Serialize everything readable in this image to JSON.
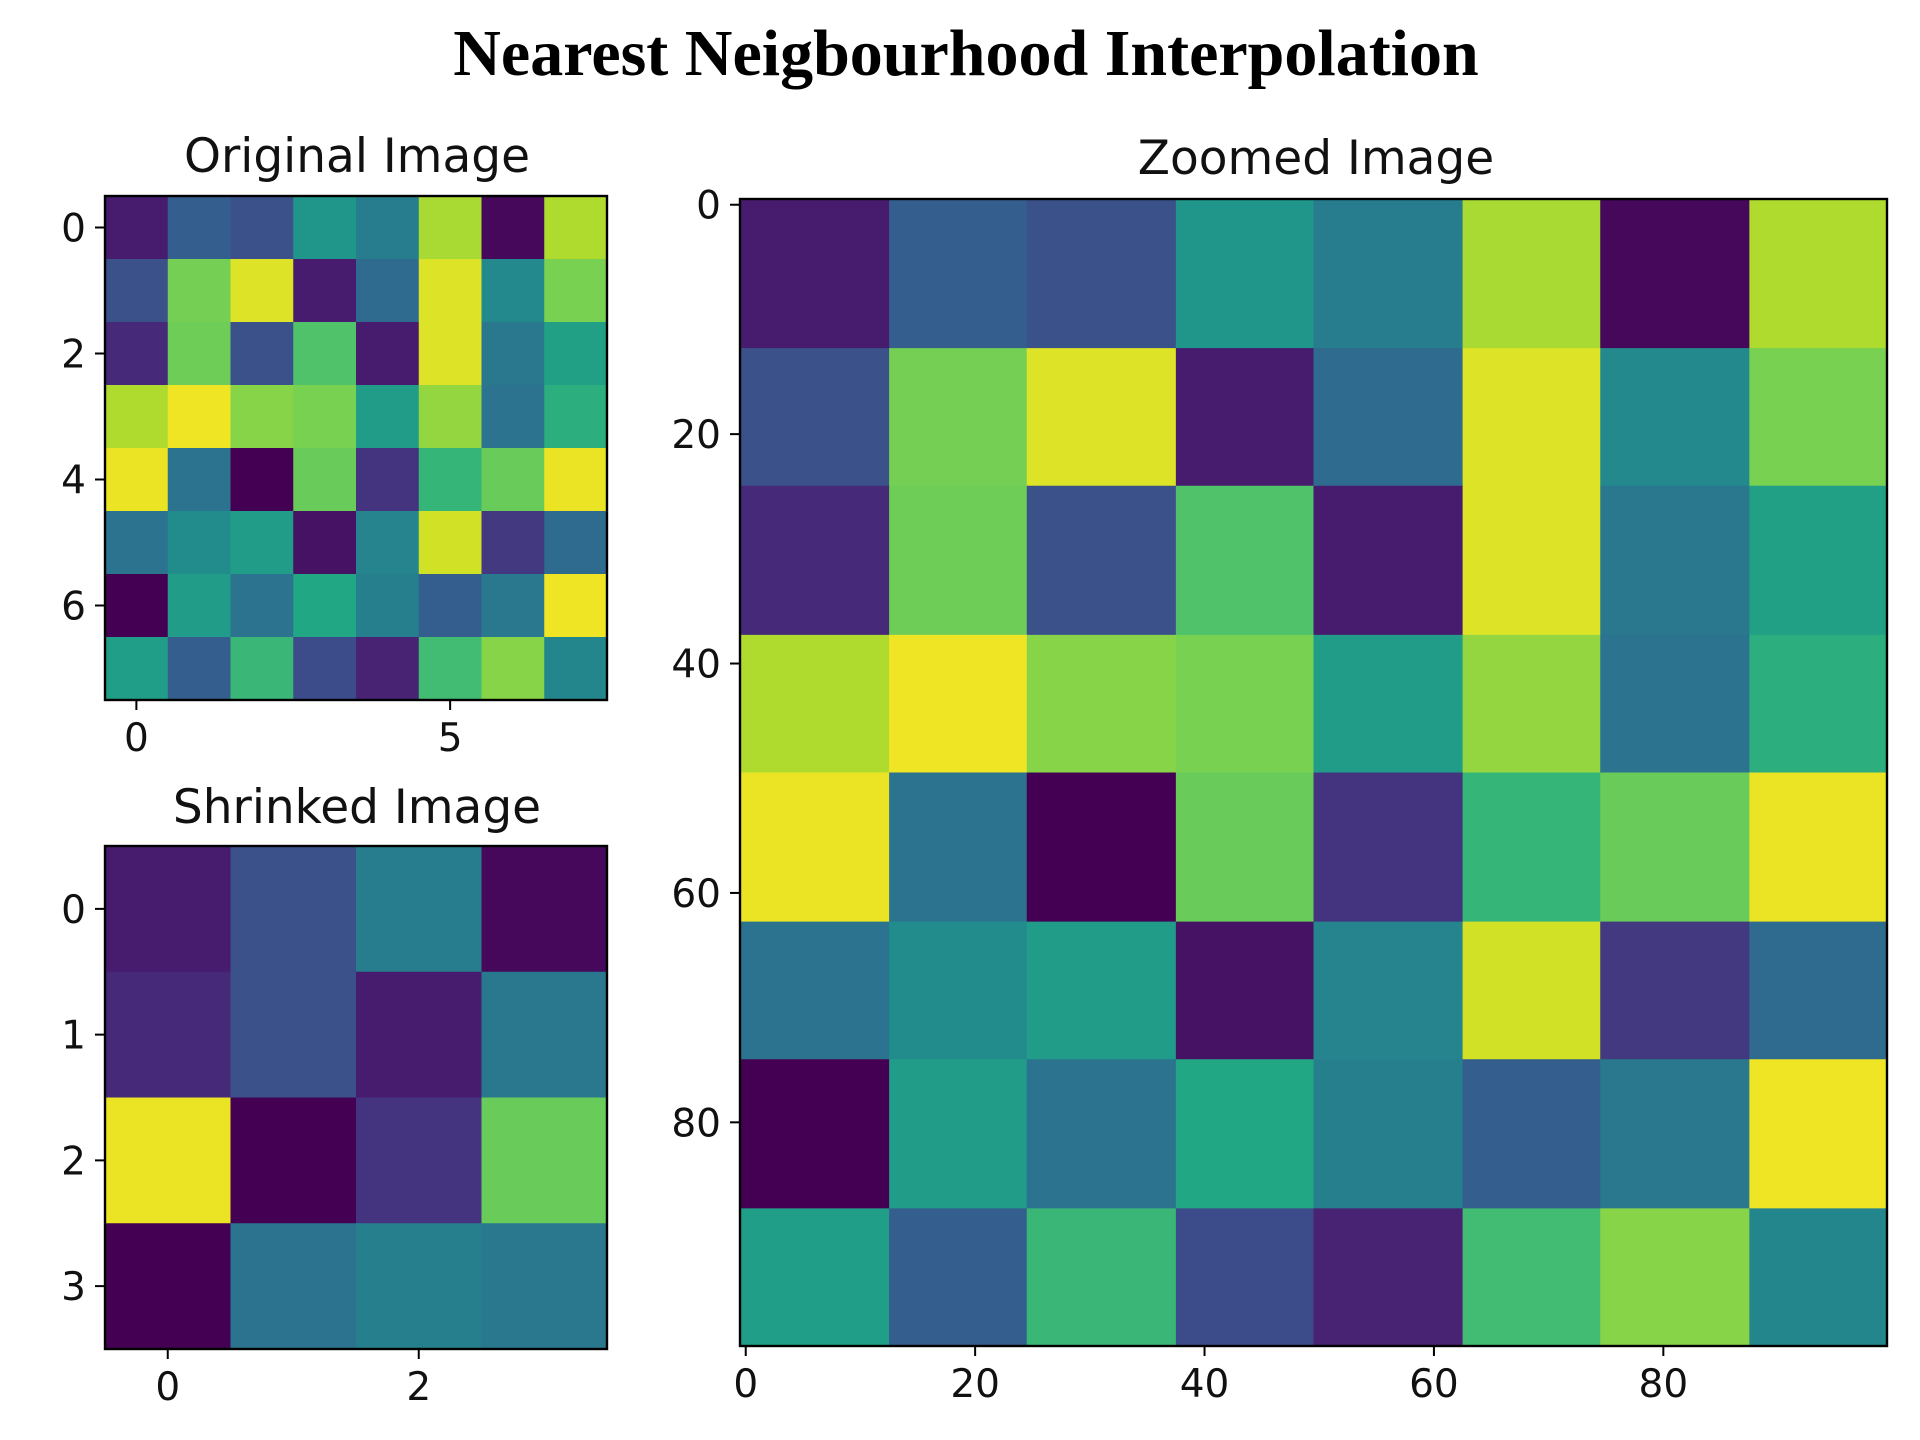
{
  "figure": {
    "title": "Nearest Neigbourhood Interpolation"
  },
  "chart_data": [
    {
      "id": "original",
      "type": "heatmap",
      "title": "Original Image",
      "colormap": "viridis",
      "value_range": [
        0,
        1
      ],
      "x_extent": [
        -0.5,
        7.5
      ],
      "y_extent": [
        -0.5,
        7.5
      ],
      "xticks": [
        0,
        5
      ],
      "yticks": [
        0,
        2,
        4,
        6
      ],
      "values": [
        [
          0.08,
          0.3,
          0.25,
          0.52,
          0.42,
          0.87,
          0.02,
          0.88
        ],
        [
          0.25,
          0.79,
          0.95,
          0.08,
          0.35,
          0.95,
          0.47,
          0.8
        ],
        [
          0.12,
          0.78,
          0.25,
          0.72,
          0.08,
          0.95,
          0.4,
          0.57
        ],
        [
          0.88,
          0.98,
          0.82,
          0.8,
          0.55,
          0.84,
          0.38,
          0.63
        ],
        [
          0.97,
          0.38,
          0.0,
          0.77,
          0.15,
          0.66,
          0.77,
          0.97
        ],
        [
          0.38,
          0.48,
          0.55,
          0.05,
          0.45,
          0.93,
          0.17,
          0.35
        ],
        [
          0.0,
          0.55,
          0.38,
          0.6,
          0.43,
          0.3,
          0.4,
          0.98
        ],
        [
          0.56,
          0.3,
          0.67,
          0.23,
          0.1,
          0.69,
          0.82,
          0.46
        ]
      ]
    },
    {
      "id": "shrinked",
      "type": "heatmap",
      "title": "Shrinked Image",
      "colormap": "viridis",
      "value_range": [
        0,
        1
      ],
      "x_extent": [
        -0.5,
        3.5
      ],
      "y_extent": [
        -0.5,
        3.5
      ],
      "xticks": [
        0,
        2
      ],
      "yticks": [
        0,
        1,
        2,
        3
      ],
      "values": [
        [
          0.08,
          0.25,
          0.42,
          0.02
        ],
        [
          0.12,
          0.25,
          0.08,
          0.4
        ],
        [
          0.97,
          0.0,
          0.15,
          0.77
        ],
        [
          0.0,
          0.38,
          0.43,
          0.4
        ]
      ]
    },
    {
      "id": "zoomed",
      "type": "heatmap",
      "title": "Zoomed Image",
      "colormap": "viridis",
      "value_range": [
        0,
        1
      ],
      "x_extent": [
        -0.5,
        99.5
      ],
      "y_extent": [
        -0.5,
        99.5
      ],
      "block_edges": [
        0,
        12.5,
        24.5,
        37.5,
        49.5,
        62.5,
        74.5,
        87.5,
        99.5
      ],
      "xticks": [
        0,
        20,
        40,
        60,
        80
      ],
      "yticks": [
        0,
        20,
        40,
        60,
        80
      ],
      "values": [
        [
          0.08,
          0.3,
          0.25,
          0.52,
          0.42,
          0.87,
          0.02,
          0.88
        ],
        [
          0.25,
          0.79,
          0.95,
          0.08,
          0.35,
          0.95,
          0.47,
          0.8
        ],
        [
          0.12,
          0.78,
          0.25,
          0.72,
          0.08,
          0.95,
          0.4,
          0.57
        ],
        [
          0.88,
          0.98,
          0.82,
          0.8,
          0.55,
          0.84,
          0.38,
          0.63
        ],
        [
          0.97,
          0.38,
          0.0,
          0.77,
          0.15,
          0.66,
          0.77,
          0.97
        ],
        [
          0.38,
          0.48,
          0.55,
          0.05,
          0.45,
          0.93,
          0.17,
          0.35
        ],
        [
          0.0,
          0.55,
          0.38,
          0.6,
          0.43,
          0.3,
          0.4,
          0.98
        ],
        [
          0.56,
          0.3,
          0.67,
          0.23,
          0.1,
          0.69,
          0.82,
          0.46
        ]
      ]
    }
  ]
}
